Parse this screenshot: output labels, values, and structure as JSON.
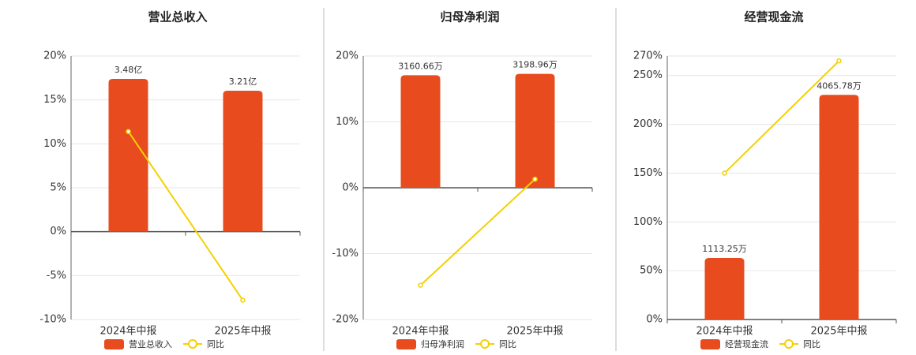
{
  "chart_data": [
    {
      "type": "bar",
      "title": "营业总收入",
      "categories": [
        "2024年中报",
        "2025年中报"
      ],
      "series": [
        {
          "name": "营业总收入",
          "color": "#e84c1e",
          "axis": "y2",
          "values": [
            3.48,
            3.21
          ],
          "value_labels": [
            "3.48亿",
            "3.21亿"
          ]
        },
        {
          "name": "同比",
          "type": "line",
          "color": "#f5d000",
          "values": [
            11.4,
            -7.8
          ]
        }
      ],
      "ylim": [
        -10,
        20
      ],
      "yticks": [
        {
          "value": -10,
          "label": "-10%"
        },
        {
          "value": -5,
          "label": "-5%"
        },
        {
          "value": 0,
          "label": "0%"
        },
        {
          "value": 5,
          "label": "5%"
        },
        {
          "value": 10,
          "label": "10%"
        },
        {
          "value": 15,
          "label": "15%"
        },
        {
          "value": 20,
          "label": "20%"
        }
      ],
      "y2lim": [
        -2,
        4
      ],
      "grid": true
    },
    {
      "type": "bar",
      "title": "归母净利润",
      "categories": [
        "2024年中报",
        "2025年中报"
      ],
      "series": [
        {
          "name": "归母净利润",
          "color": "#e84c1e",
          "axis": "y2",
          "values": [
            3160.66,
            3198.96
          ],
          "value_labels": [
            "3160.66万",
            "3198.96万"
          ]
        },
        {
          "name": "同比",
          "type": "line",
          "color": "#f5d000",
          "values": [
            -14.8,
            1.3
          ]
        }
      ],
      "ylim": [
        -20,
        20
      ],
      "yticks": [
        {
          "value": -20,
          "label": "-20%"
        },
        {
          "value": -10,
          "label": "-10%"
        },
        {
          "value": 0,
          "label": "0%"
        },
        {
          "value": 10,
          "label": "10%"
        },
        {
          "value": 20,
          "label": "20%"
        }
      ],
      "y2lim": [
        -3700,
        3700
      ],
      "grid": true
    },
    {
      "type": "bar",
      "title": "经营现金流",
      "categories": [
        "2024年中报",
        "2025年中报"
      ],
      "series": [
        {
          "name": "经营现金流",
          "color": "#e84c1e",
          "axis": "y2",
          "values": [
            1113.25,
            4065.78
          ],
          "value_labels": [
            "1113.25万",
            "4065.78万"
          ]
        },
        {
          "name": "同比",
          "type": "line",
          "color": "#f5d000",
          "values": [
            150,
            265
          ]
        }
      ],
      "ylim": [
        0,
        270
      ],
      "yticks": [
        {
          "value": 0,
          "label": "0%"
        },
        {
          "value": 50,
          "label": "50%"
        },
        {
          "value": 100,
          "label": "100%"
        },
        {
          "value": 150,
          "label": "150%"
        },
        {
          "value": 200,
          "label": "200%"
        },
        {
          "value": 250,
          "label": "250%"
        },
        {
          "value": 270,
          "label": "270%"
        }
      ],
      "y2lim": [
        0,
        4770
      ],
      "grid": true
    }
  ]
}
